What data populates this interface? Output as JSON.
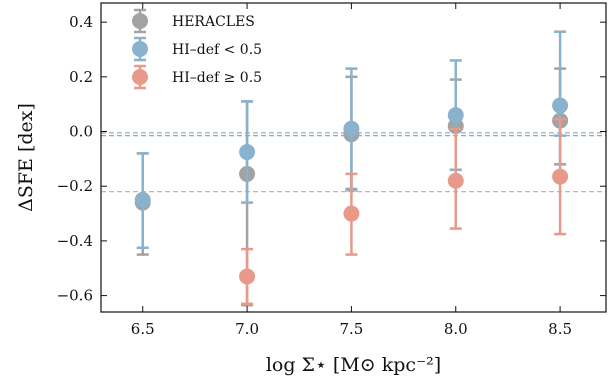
{
  "chart_data": {
    "type": "scatter",
    "xlabel": "log Σ⋆ [M⊙ kpc⁻²]",
    "ylabel": "ΔSFE [dex]",
    "xlim": [
      6.3,
      8.72
    ],
    "ylim": [
      -0.66,
      0.47
    ],
    "xticks": [
      6.5,
      7.0,
      7.5,
      8.0,
      8.5
    ],
    "xtick_labels": [
      "6.5",
      "7.0",
      "7.5",
      "8.0",
      "8.5"
    ],
    "yticks": [
      -0.6,
      -0.4,
      -0.2,
      0.0,
      0.2,
      0.4
    ],
    "ytick_labels": [
      "−0.6",
      "−0.4",
      "−0.2",
      "0.0",
      "0.2",
      "0.4"
    ],
    "legend_position": "top-left",
    "series": [
      {
        "name": "HERACLES",
        "color": "#a3a3a3",
        "x": [
          6.5,
          7.0,
          7.5,
          8.0,
          8.5
        ],
        "y": [
          -0.26,
          -0.155,
          -0.01,
          0.02,
          0.04
        ],
        "err_low": [
          0.19,
          0.48,
          0.2,
          0.16,
          0.16
        ],
        "err_high": [
          0.18,
          0.265,
          0.21,
          0.17,
          0.19
        ],
        "hline": -0.015
      },
      {
        "name": "HI–def < 0.5",
        "color": "#8ab2cc",
        "x": [
          6.5,
          7.0,
          7.5,
          8.0,
          8.5
        ],
        "y": [
          -0.25,
          -0.075,
          0.01,
          0.06,
          0.095
        ],
        "err_low": [
          0.175,
          0.185,
          0.225,
          0.2,
          0.11
        ],
        "err_high": [
          0.17,
          0.185,
          0.22,
          0.2,
          0.27
        ],
        "hline": -0.005
      },
      {
        "name": "HI–def ≥ 0.5",
        "color": "#e8998a",
        "x": [
          7.0,
          7.5,
          8.0,
          8.5
        ],
        "y": [
          -0.53,
          -0.3,
          -0.18,
          -0.165
        ],
        "err_low": [
          0.1,
          0.15,
          0.175,
          0.21
        ],
        "err_high": [
          0.1,
          0.145,
          0.19,
          0.21
        ],
        "hline": -0.22
      }
    ]
  }
}
